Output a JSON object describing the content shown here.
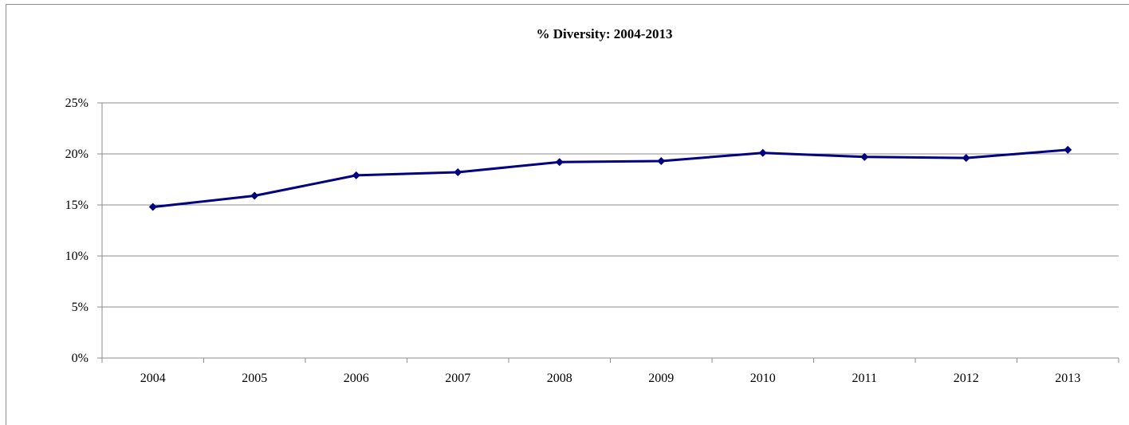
{
  "chart_data": {
    "type": "line",
    "title": "% Diversity: 2004-2013",
    "xlabel": "",
    "ylabel": "",
    "categories": [
      "2004",
      "2005",
      "2006",
      "2007",
      "2008",
      "2009",
      "2010",
      "2011",
      "2012",
      "2013"
    ],
    "series": [
      {
        "values": [
          14.8,
          15.9,
          17.9,
          18.2,
          19.2,
          19.3,
          20.1,
          19.7,
          19.6,
          20.4
        ]
      }
    ],
    "ylim": [
      0,
      25
    ],
    "y_ticks": [
      "0%",
      "5%",
      "10%",
      "15%",
      "20%",
      "25%"
    ],
    "y_tick_values": [
      0,
      5,
      10,
      15,
      20,
      25
    ],
    "grid": "horizontal",
    "line_color": "#000080",
    "marker": "diamond"
  }
}
